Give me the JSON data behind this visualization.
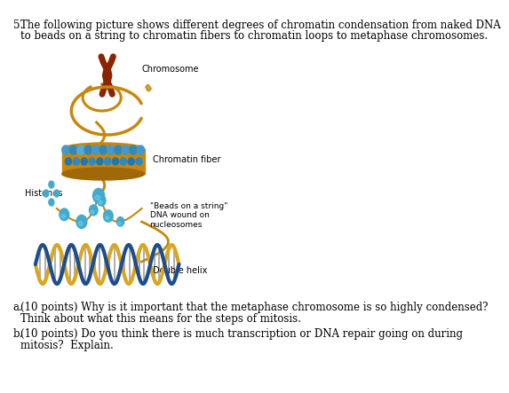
{
  "title_num": "5.",
  "title_text": " The following picture shows different degrees of chromatin condensation from naked DNA\n   to beads on a string to chromatin fibers to chromatin loops to metaphase chromosomes.",
  "question_a": "a.   (10 points) Why is it important that the metaphase chromosome is so highly condensed?\n     Think about what this means for the steps of mitosis.",
  "question_b": "b.   (10 points) Do you think there is much transcription or DNA repair going on during\n     mitosis?  Explain.",
  "label_chromosome": "Chromosome",
  "label_chromatin_fiber": "Chromatin fiber",
  "label_beads": "\"Beads on a string\"\nDNA wound on\nnucleosomes",
  "label_double_helix": "Double helix",
  "label_histones": "Histones",
  "bg_color": "#ffffff",
  "text_color": "#000000",
  "font_size_main": 8.5,
  "font_size_labels": 7.0
}
